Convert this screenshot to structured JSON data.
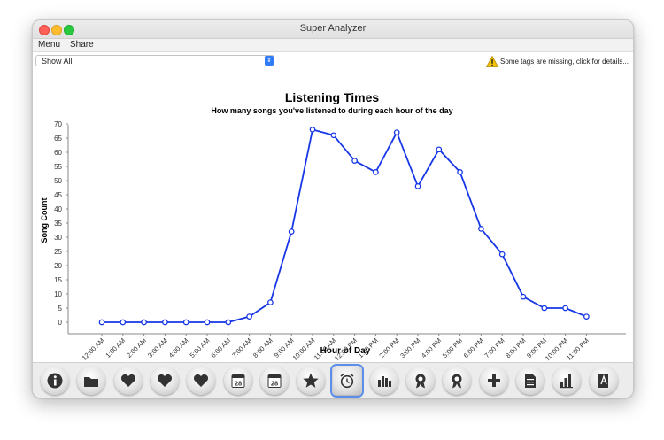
{
  "window": {
    "title": "Super Analyzer"
  },
  "menu": [
    "Menu",
    "Share"
  ],
  "filter": {
    "value": "Show All"
  },
  "warning": {
    "text": "Some tags are missing, click for details...",
    "icon": "warning-triangle-icon"
  },
  "colors": {
    "line": "#1736e6",
    "accent": "#2f7cf6",
    "warning": "#f5c400"
  },
  "chart_data": {
    "type": "line",
    "title": "Listening Times",
    "subtitle": "How many songs you've listened to during each hour of the day",
    "xlabel": "Hour of Day",
    "ylabel": "Song Count",
    "ylim": [
      0,
      70
    ],
    "yticks": [
      0,
      5,
      10,
      15,
      20,
      25,
      30,
      35,
      40,
      45,
      50,
      55,
      60,
      65,
      70
    ],
    "categories": [
      "12:00 AM",
      "1:00 AM",
      "2:00 AM",
      "3:00 AM",
      "4:00 AM",
      "5:00 AM",
      "6:00 AM",
      "7:00 AM",
      "8:00 AM",
      "9:00 AM",
      "10:00 AM",
      "11:00 AM",
      "12:00 PM",
      "1:00 PM",
      "2:00 PM",
      "3:00 PM",
      "4:00 PM",
      "5:00 PM",
      "6:00 PM",
      "7:00 PM",
      "8:00 PM",
      "9:00 PM",
      "10:00 PM",
      "11:00 PM"
    ],
    "values": [
      0,
      0,
      0,
      0,
      0,
      0,
      0,
      2,
      7,
      32,
      68,
      66,
      57,
      53,
      67,
      48,
      61,
      53,
      33,
      24,
      9,
      5,
      5,
      2
    ],
    "grid": false,
    "legend": "none"
  },
  "toolbar": [
    {
      "name": "info-icon"
    },
    {
      "name": "folder-icon"
    },
    {
      "name": "heart-icon"
    },
    {
      "name": "heart-icon"
    },
    {
      "name": "heart-icon"
    },
    {
      "name": "calendar-icon",
      "label": "28"
    },
    {
      "name": "calendar-icon",
      "label": "28"
    },
    {
      "name": "star-icon"
    },
    {
      "name": "alarm-clock-icon",
      "selected": true
    },
    {
      "name": "equalizer-icon"
    },
    {
      "name": "award-ribbon-icon"
    },
    {
      "name": "award-ribbon-icon"
    },
    {
      "name": "plus-icon"
    },
    {
      "name": "document-icon"
    },
    {
      "name": "bar-chart-icon"
    },
    {
      "name": "book-icon"
    }
  ]
}
